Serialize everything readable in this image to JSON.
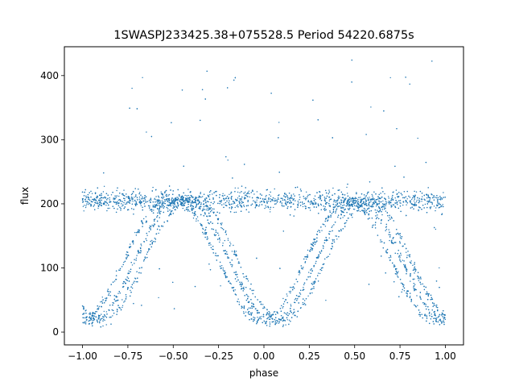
{
  "chart_data": {
    "type": "scatter",
    "title": "1SWASPJ233425.38+075528.5 Period 54220.6875s",
    "xlabel": "phase",
    "ylabel": "flux",
    "xlim": [
      -1.1,
      1.1
    ],
    "ylim": [
      -20,
      445
    ],
    "xticks": [
      -1.0,
      -0.75,
      -0.5,
      -0.25,
      0.0,
      0.25,
      0.5,
      0.75,
      1.0
    ],
    "xtick_labels": [
      "−1.00",
      "−0.75",
      "−0.50",
      "−0.25",
      "0.00",
      "0.25",
      "0.50",
      "0.75",
      "1.00"
    ],
    "yticks": [
      0,
      100,
      200,
      300,
      400
    ],
    "ytick_labels": [
      "0",
      "100",
      "200",
      "300",
      "400"
    ],
    "grid": false,
    "legend": "none",
    "marker_color": "#1f77b4",
    "series": [
      {
        "baseline_flux": 205,
        "baseline_band": [
          185,
          225
        ],
        "eclipse_centers": [
          -0.95,
          0.05,
          1.0
        ],
        "eclipse_min_flux": 18,
        "eclipse_half_width": 0.48,
        "track_offsets": [
          -0.06,
          0.0,
          0.05
        ],
        "phase_range": [
          -1.0,
          1.0
        ]
      }
    ]
  }
}
